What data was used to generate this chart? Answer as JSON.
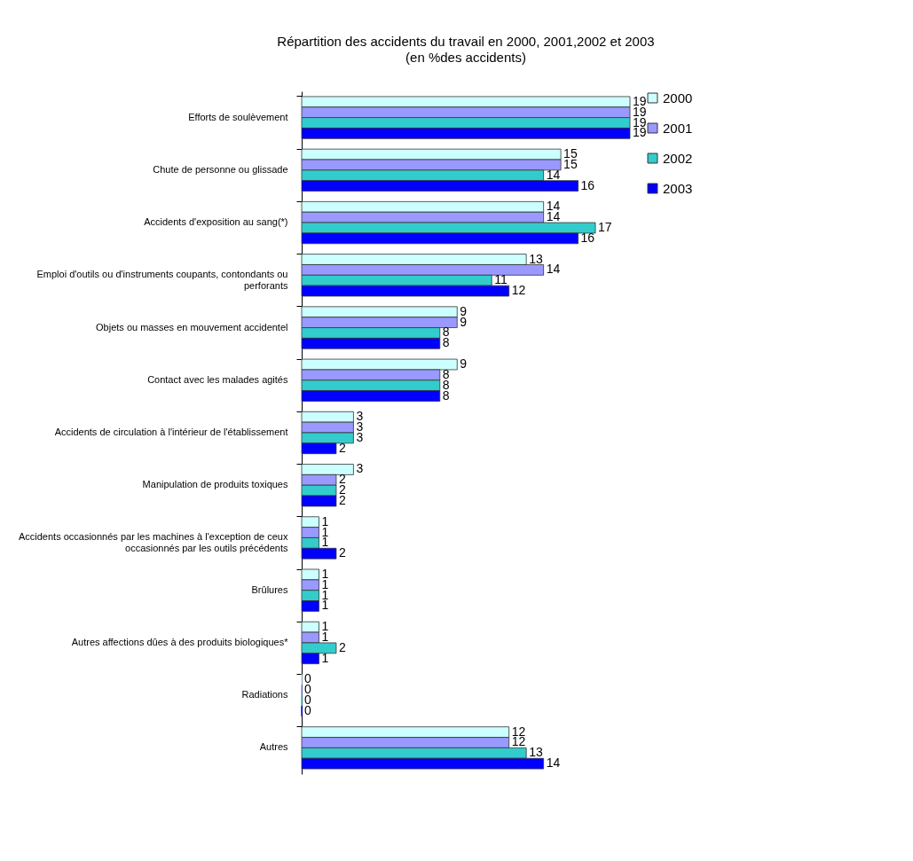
{
  "chart_data": {
    "type": "bar",
    "orientation": "horizontal",
    "title": "Répartition des accidents du travail en  2000, 2001,2002 et  2003",
    "subtitle": "(en %des accidents)",
    "categories": [
      "Efforts de soulèvement",
      "Chute de personne ou glissade",
      "Accidents d'exposition au sang(*)",
      "Emploi d'outils ou d'instruments coupants, contondants ou perforants",
      "Objets ou masses en mouvement accidentel",
      "Contact avec les malades agités",
      "Accidents de circulation à l'intérieur de l'établissement",
      "Manipulation de produits toxiques",
      "Accidents occasionnés par les machines à l'exception de ceux occasionnés par les outils précédents",
      "Brûlures",
      "Autres affections dûes à des produits biologiques*",
      "Radiations",
      "Autres"
    ],
    "series": [
      {
        "name": "2000",
        "color": "#ccffff",
        "values": [
          19,
          15,
          14,
          13,
          9,
          9,
          3,
          3,
          1,
          1,
          1,
          0,
          12
        ]
      },
      {
        "name": "2001",
        "color": "#9999ff",
        "values": [
          19,
          15,
          14,
          14,
          9,
          8,
          3,
          2,
          1,
          1,
          1,
          0,
          12
        ]
      },
      {
        "name": "2002",
        "color": "#33cccc",
        "values": [
          19,
          14,
          17,
          11,
          8,
          8,
          3,
          2,
          1,
          1,
          2,
          0,
          13
        ]
      },
      {
        "name": "2003",
        "color": "#0000ff",
        "values": [
          19,
          16,
          16,
          12,
          8,
          8,
          2,
          2,
          2,
          1,
          1,
          0,
          14
        ]
      }
    ],
    "data_labels": true,
    "legend": "right"
  }
}
